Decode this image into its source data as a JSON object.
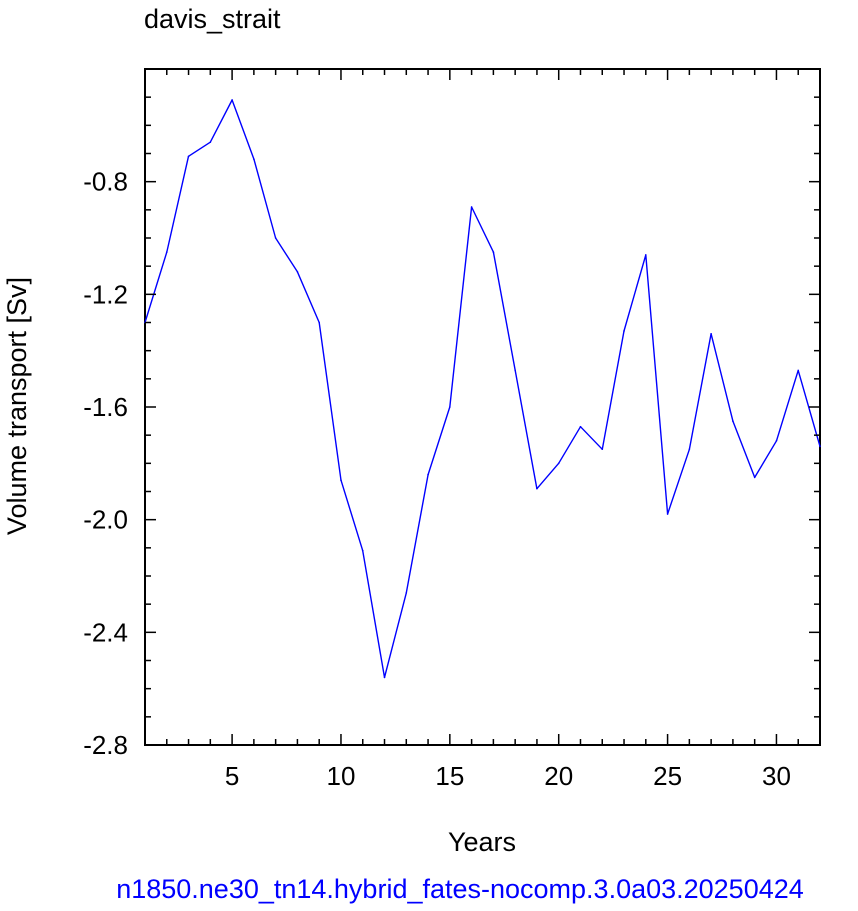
{
  "chart_data": {
    "type": "line",
    "title": "davis_strait",
    "xlabel": "Years",
    "ylabel": "Volume transport [Sv]",
    "caption": "n1850.ne30_tn14.hybrid_fates-nocomp.3.0a03.20250424",
    "xlim": [
      1,
      32
    ],
    "ylim": [
      -2.8,
      -0.4
    ],
    "x_ticks": [
      5,
      10,
      15,
      20,
      25,
      30
    ],
    "x_tick_labels": [
      "5",
      "10",
      "15",
      "20",
      "25",
      "30"
    ],
    "y_ticks": [
      -2.8,
      -2.4,
      -2.0,
      -1.6,
      -1.2,
      -0.8
    ],
    "y_tick_labels": [
      "-2.8",
      "-2.4",
      "-2.0",
      "-1.6",
      "-1.2",
      "-0.8"
    ],
    "grid": false,
    "line_color": "#0000ff",
    "series": [
      {
        "x": [
          1,
          2,
          3,
          4,
          5,
          6,
          7,
          8,
          9,
          10,
          11,
          12,
          13,
          14,
          15,
          16,
          17,
          18,
          19,
          20,
          21,
          22,
          23,
          24,
          25,
          26,
          27,
          28,
          29,
          30,
          31,
          32
        ],
        "values": [
          -1.3,
          -1.05,
          -0.71,
          -0.66,
          -0.51,
          -0.72,
          -1.0,
          -1.12,
          -1.3,
          -1.86,
          -2.11,
          -2.56,
          -2.26,
          -1.84,
          -1.6,
          -0.89,
          -1.05,
          -1.47,
          -1.89,
          -1.8,
          -1.67,
          -1.75,
          -1.33,
          -1.06,
          -1.98,
          -1.75,
          -1.34,
          -1.65,
          -1.85,
          -1.72,
          -1.47,
          -1.74
        ]
      }
    ]
  }
}
